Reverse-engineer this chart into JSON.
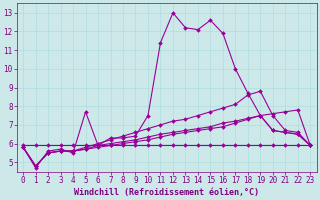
{
  "title": "",
  "xlabel": "Windchill (Refroidissement éolien,°C)",
  "background_color": "#cce8e8",
  "line_color": "#990099",
  "xlim": [
    -0.5,
    23.5
  ],
  "ylim": [
    4.5,
    13.5
  ],
  "yticks": [
    5,
    6,
    7,
    8,
    9,
    10,
    11,
    12,
    13
  ],
  "xticks": [
    0,
    1,
    2,
    3,
    4,
    5,
    6,
    7,
    8,
    9,
    10,
    11,
    12,
    13,
    14,
    15,
    16,
    17,
    18,
    19,
    20,
    21,
    22,
    23
  ],
  "line1_x": [
    0,
    1,
    2,
    3,
    4,
    5,
    6,
    7,
    8,
    9,
    10,
    11,
    12,
    13,
    14,
    15,
    16,
    17,
    18,
    19,
    20,
    21,
    22,
    23
  ],
  "line1_y": [
    5.8,
    4.7,
    5.6,
    5.7,
    5.5,
    7.7,
    5.9,
    6.3,
    6.3,
    6.4,
    7.5,
    11.4,
    13.0,
    12.2,
    12.1,
    12.6,
    11.9,
    10.0,
    8.7,
    7.5,
    6.7,
    6.6,
    6.5,
    5.9
  ],
  "line2_x": [
    0,
    1,
    2,
    3,
    4,
    5,
    6,
    7,
    8,
    9,
    10,
    11,
    12,
    13,
    14,
    15,
    16,
    17,
    18,
    19,
    20,
    21,
    22,
    23
  ],
  "line2_y": [
    5.9,
    5.9,
    5.9,
    5.9,
    5.9,
    5.9,
    5.9,
    5.9,
    5.9,
    5.9,
    5.9,
    5.9,
    5.9,
    5.9,
    5.9,
    5.9,
    5.9,
    5.9,
    5.9,
    5.9,
    5.9,
    5.9,
    5.9,
    5.9
  ],
  "line3_x": [
    0,
    1,
    2,
    3,
    4,
    5,
    6,
    7,
    8,
    9,
    10,
    11,
    12,
    13,
    14,
    15,
    16,
    17,
    18,
    19,
    20,
    21,
    22,
    23
  ],
  "line3_y": [
    5.8,
    4.8,
    5.5,
    5.6,
    5.6,
    5.7,
    5.8,
    5.9,
    6.0,
    6.1,
    6.2,
    6.35,
    6.5,
    6.6,
    6.7,
    6.8,
    6.9,
    7.1,
    7.3,
    7.5,
    7.6,
    7.7,
    7.8,
    5.9
  ],
  "line4_x": [
    0,
    1,
    2,
    3,
    4,
    5,
    6,
    7,
    8,
    9,
    10,
    11,
    12,
    13,
    14,
    15,
    16,
    17,
    18,
    19,
    20,
    21,
    22,
    23
  ],
  "line4_y": [
    5.8,
    4.8,
    5.5,
    5.6,
    5.6,
    5.8,
    6.0,
    6.2,
    6.4,
    6.6,
    6.8,
    7.0,
    7.2,
    7.3,
    7.5,
    7.7,
    7.9,
    8.1,
    8.6,
    8.8,
    7.5,
    6.7,
    6.6,
    5.9
  ],
  "line5_x": [
    0,
    1,
    2,
    3,
    4,
    5,
    6,
    7,
    8,
    9,
    10,
    11,
    12,
    13,
    14,
    15,
    16,
    17,
    18,
    19,
    20,
    21,
    22,
    23
  ],
  "line5_y": [
    5.8,
    4.8,
    5.5,
    5.6,
    5.6,
    5.7,
    5.9,
    6.0,
    6.1,
    6.2,
    6.35,
    6.5,
    6.6,
    6.7,
    6.8,
    6.9,
    7.1,
    7.2,
    7.35,
    7.5,
    6.7,
    6.6,
    6.5,
    5.9
  ],
  "marker": "D",
  "markersize": 2,
  "linewidth": 0.8,
  "font_color": "#800080",
  "xlabel_fontsize": 6,
  "tick_fontsize": 5.5,
  "grid_color": "#aadada"
}
